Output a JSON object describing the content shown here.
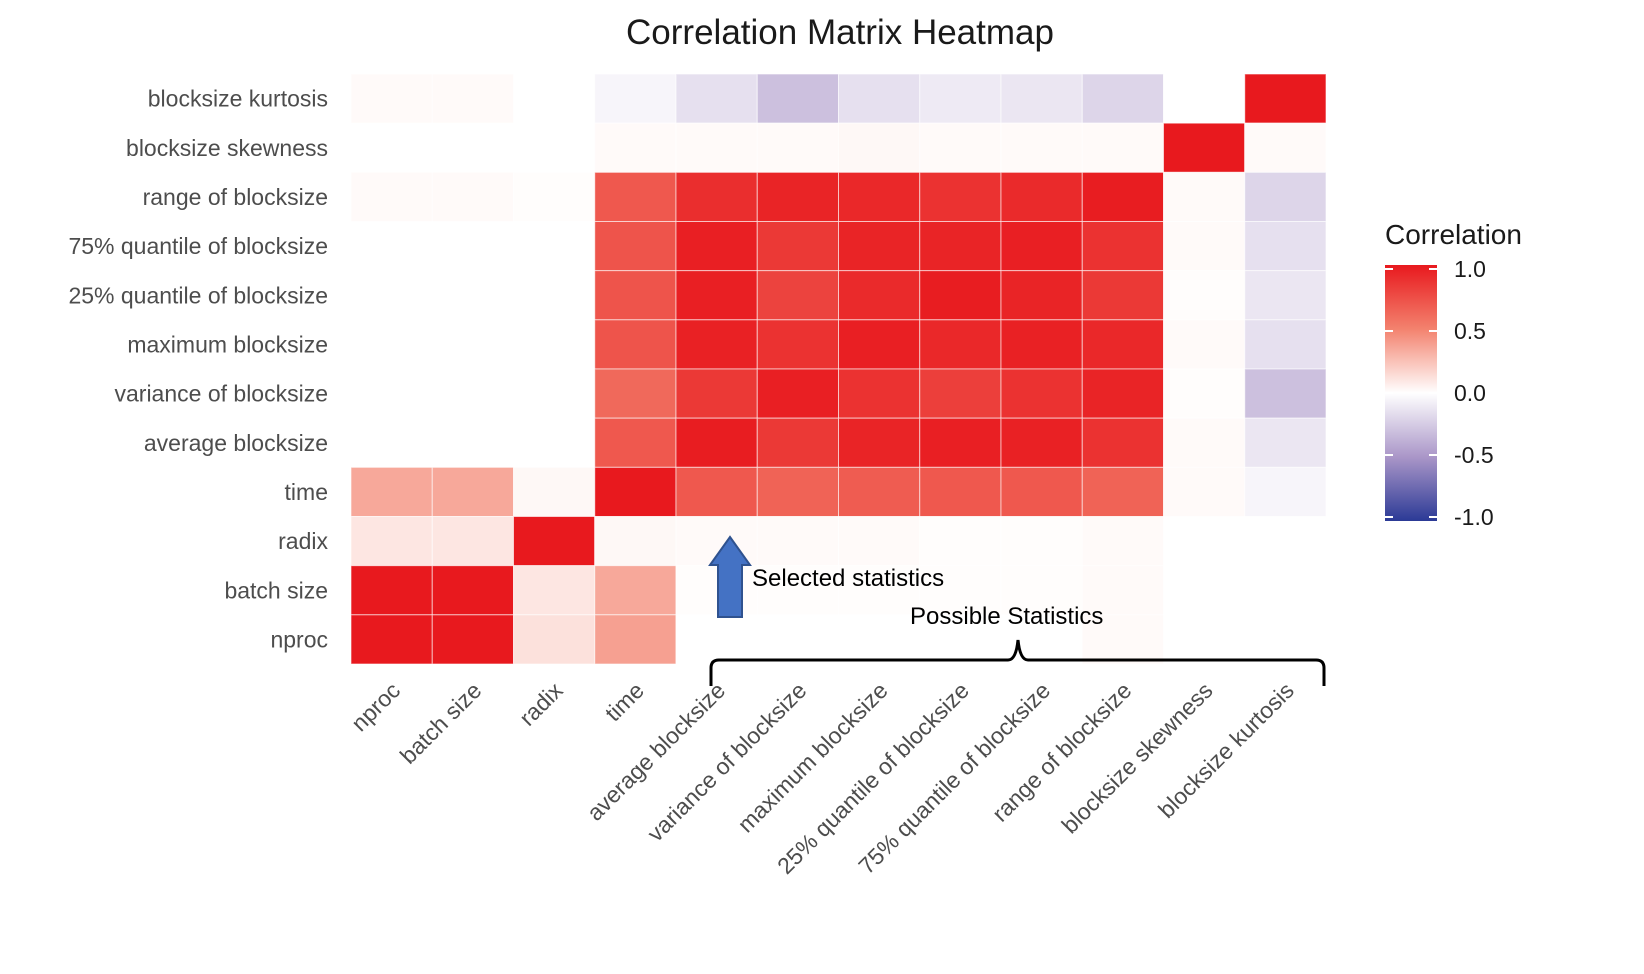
{
  "chart_data": {
    "type": "heatmap",
    "title": "Correlation Matrix Heatmap",
    "x_categories": [
      "nproc",
      "batch size",
      "radix",
      "time",
      "average blocksize",
      "variance of blocksize",
      "maximum blocksize",
      "25% quantile of blocksize",
      "75% quantile of blocksize",
      "range of blocksize",
      "blocksize skewness",
      "blocksize kurtosis"
    ],
    "y_categories_top_to_bottom": [
      "blocksize kurtosis",
      "blocksize skewness",
      "range of blocksize",
      "75% quantile of blocksize",
      "25% quantile of blocksize",
      "maximum blocksize",
      "variance of blocksize",
      "average blocksize",
      "time",
      "radix",
      "batch size",
      "nproc"
    ],
    "values": [
      [
        0.02,
        0.02,
        0.0,
        -0.05,
        -0.15,
        -0.3,
        -0.15,
        -0.1,
        -0.12,
        -0.2,
        0.0,
        1.0
      ],
      [
        0.0,
        0.0,
        0.0,
        0.02,
        0.02,
        0.02,
        0.03,
        0.02,
        0.02,
        0.02,
        1.0,
        0.02
      ],
      [
        0.02,
        0.02,
        0.01,
        0.7,
        0.9,
        0.95,
        0.93,
        0.88,
        0.92,
        0.98,
        0.02,
        -0.2
      ],
      [
        0.0,
        0.0,
        0.0,
        0.72,
        0.97,
        0.85,
        0.95,
        0.95,
        0.97,
        0.88,
        0.02,
        -0.15
      ],
      [
        0.0,
        0.0,
        0.0,
        0.72,
        0.97,
        0.8,
        0.92,
        0.98,
        0.95,
        0.85,
        0.01,
        -0.12
      ],
      [
        0.0,
        0.0,
        0.0,
        0.72,
        0.96,
        0.88,
        0.97,
        0.93,
        0.96,
        0.93,
        0.02,
        -0.15
      ],
      [
        0.0,
        0.0,
        0.0,
        0.62,
        0.85,
        0.97,
        0.88,
        0.82,
        0.88,
        0.95,
        0.01,
        -0.3
      ],
      [
        0.0,
        0.0,
        0.0,
        0.7,
        0.98,
        0.85,
        0.95,
        0.97,
        0.96,
        0.88,
        0.02,
        -0.12
      ],
      [
        0.35,
        0.35,
        0.03,
        1.0,
        0.7,
        0.65,
        0.68,
        0.7,
        0.7,
        0.65,
        0.02,
        -0.05
      ],
      [
        0.1,
        0.1,
        1.0,
        0.03,
        0.02,
        0.02,
        0.02,
        0.01,
        0.01,
        0.02,
        0.0,
        0.0
      ],
      [
        1.0,
        1.0,
        0.1,
        0.35,
        0.01,
        0.01,
        0.01,
        0.01,
        0.01,
        0.02,
        0.0,
        0.0
      ],
      [
        1.0,
        1.0,
        0.12,
        0.38,
        0.0,
        0.0,
        0.0,
        0.0,
        0.0,
        0.02,
        0.0,
        0.0
      ]
    ],
    "legend": {
      "title": "Correlation",
      "ticks": [
        "1.0",
        "0.5",
        "0.0",
        "-0.5",
        "-1.0"
      ],
      "placement": "right",
      "range": [
        -1,
        1
      ]
    },
    "colors": {
      "high": "#e8191e",
      "mid": "#ffffff",
      "low": "#2b3a96"
    },
    "annotations": {
      "selected": "Selected statistics",
      "possible": "Possible Statistics",
      "arrow_color": "#4472c4"
    }
  }
}
